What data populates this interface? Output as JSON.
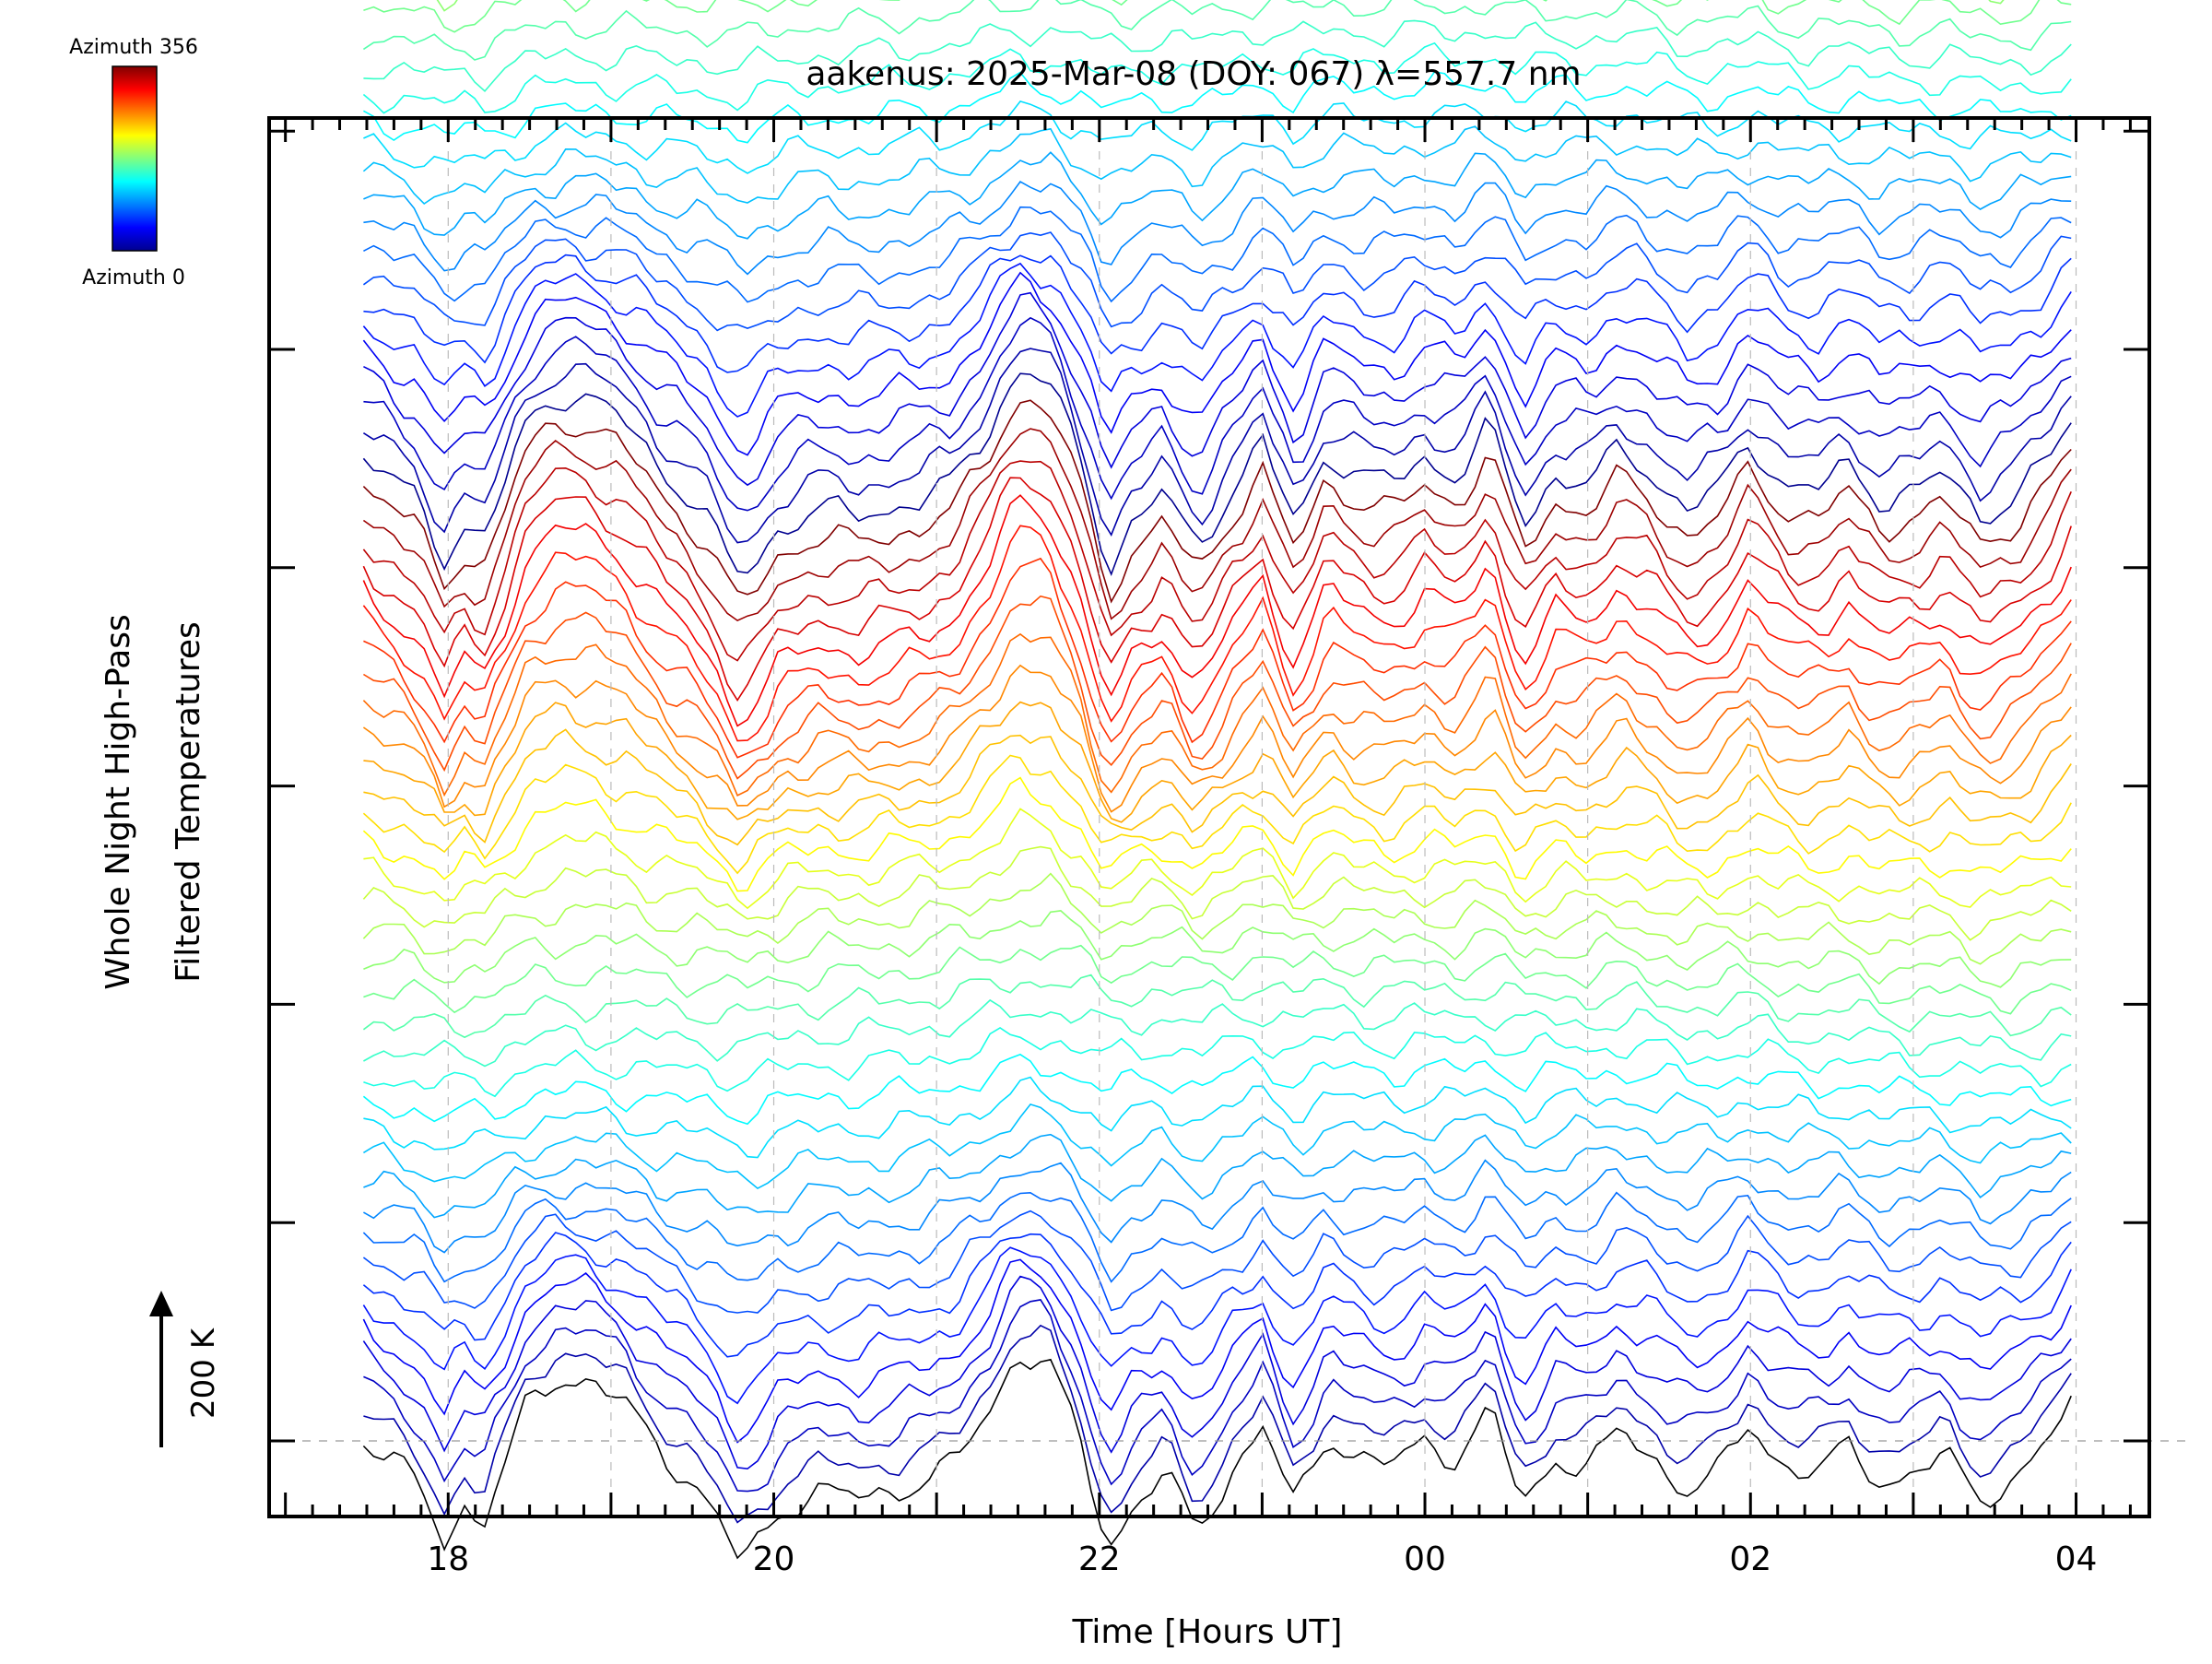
{
  "chart_data": {
    "type": "line",
    "title": "aakenus: 2025-Mar-08 (DOY: 067) λ=557.7 nm",
    "xlabel": "Time [Hours UT]",
    "ylabel_line1": "Whole Night High-Pass",
    "ylabel_line2": "Filtered Temperatures",
    "scale_label": "200 K",
    "x_ticks": [
      {
        "hours": 18,
        "label": "18"
      },
      {
        "hours": 20,
        "label": "20"
      },
      {
        "hours": 22,
        "label": "22"
      },
      {
        "hours": 24,
        "label": "00"
      },
      {
        "hours": 26,
        "label": "02"
      },
      {
        "hours": 28,
        "label": "04"
      }
    ],
    "xlim": [
      16.9,
      28.45
    ],
    "data_range_hours": [
      17.48,
      27.97
    ],
    "colorbar": {
      "top_label": "Azimuth 356",
      "bottom_label": "Azimuth 0",
      "azimuth_range": [
        0,
        356
      ]
    },
    "series_description": "High-pass filtered temperature per azimuth bin, each trace offset vertically",
    "n_traces": 140,
    "azimuth_cycle_length": 36,
    "trace_spacing_K": 16,
    "common_profile": {
      "hours": [
        17.48,
        17.8,
        17.98,
        18.1,
        18.22,
        18.35,
        18.5,
        18.7,
        18.9,
        19.1,
        19.3,
        19.55,
        19.8,
        20.05,
        20.3,
        20.5,
        20.7,
        20.9,
        21.1,
        21.3,
        21.5,
        21.7,
        21.9,
        22.05,
        22.2,
        22.4,
        22.6,
        22.8,
        23.0,
        23.2,
        23.4,
        23.6,
        23.8,
        24.0,
        24.2,
        24.4,
        24.6,
        24.8,
        25.0,
        25.2,
        25.4,
        25.6,
        25.8,
        26.0,
        26.2,
        26.4,
        26.6,
        26.8,
        27.0,
        27.2,
        27.4,
        27.6,
        27.8,
        27.97
      ],
      "values_K": [
        0,
        -25,
        -60,
        -40,
        -50,
        -15,
        25,
        40,
        35,
        20,
        -5,
        -30,
        -75,
        -40,
        -30,
        -35,
        -30,
        -25,
        -15,
        15,
        55,
        45,
        -5,
        -65,
        -40,
        -20,
        -55,
        -20,
        10,
        -40,
        5,
        -10,
        -15,
        0,
        -10,
        20,
        -40,
        -10,
        -15,
        5,
        -10,
        -30,
        -20,
        10,
        -15,
        -20,
        -5,
        -25,
        -20,
        -10,
        -35,
        -25,
        -5,
        20
      ]
    }
  }
}
